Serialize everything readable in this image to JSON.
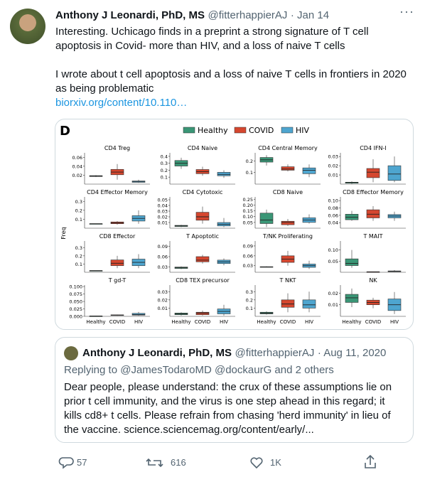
{
  "tweet": {
    "author": "Anthony J Leonardi, PhD, MS",
    "handle": "@fitterhappierAJ",
    "date": "· Jan 14",
    "lines": [
      "Interesting. Uchicago finds in a preprint a strong signature of T cell",
      "apoptosis in Covid- more than HIV, and a loss of naive T cells",
      "I wrote about t cell apoptosis and a loss of naive T cells in frontiers in 2020",
      "as being problematic"
    ],
    "link": "biorxiv.org/content/10.110…",
    "quote": {
      "author": "Anthony J Leonardi, PhD, MS",
      "handle": "@fitterhappierAJ",
      "date": "· Aug 11, 2020",
      "replying": "Replying to @JamesTodaroMD @dockaurG and 2 others",
      "lines": [
        "Dear people, please understand: the crux of these assumptions lie on",
        "prior t cell immunity, and the virus is one step ahead in this regard; it",
        "kills cd8+ t cells. Please refrain from chasing 'herd immunity' in lieu of",
        "the vaccine. science.sciencemag.org/content/early/..."
      ]
    },
    "replies": "57",
    "retweets": "616",
    "likes": "1K"
  },
  "chart_data": {
    "type": "box",
    "title": "D",
    "y_label": "Freq",
    "categories": [
      "Healthy",
      "COVID",
      "HIV"
    ],
    "series": [
      {
        "name": "Healthy",
        "color": "#3a9676"
      },
      {
        "name": "COVID",
        "color": "#d5472f"
      },
      {
        "name": "HIV",
        "color": "#4ea5cf"
      }
    ],
    "panels": [
      {
        "title": "CD4 Treg",
        "ylim": [
          0,
          0.07
        ],
        "yticks": [
          0.02,
          0.04,
          0.06
        ],
        "boxes": [
          [
            0.016,
            0.017,
            0.018,
            0.019,
            0.02
          ],
          [
            0.01,
            0.021,
            0.027,
            0.033,
            0.045
          ],
          [
            0.003,
            0.004,
            0.006,
            0.007,
            0.01
          ]
        ]
      },
      {
        "title": "CD4 Naive",
        "ylim": [
          0,
          0.45
        ],
        "yticks": [
          0.1,
          0.2,
          0.3,
          0.4
        ],
        "boxes": [
          [
            0.22,
            0.26,
            0.3,
            0.34,
            0.38
          ],
          [
            0.12,
            0.15,
            0.18,
            0.21,
            0.25
          ],
          [
            0.09,
            0.12,
            0.14,
            0.17,
            0.2
          ]
        ]
      },
      {
        "title": "CD4 Central Memory",
        "ylim": [
          0,
          0.27
        ],
        "yticks": [
          0.1,
          0.2
        ],
        "boxes": [
          [
            0.16,
            0.19,
            0.21,
            0.23,
            0.25
          ],
          [
            0.11,
            0.12,
            0.13,
            0.15,
            0.17
          ],
          [
            0.06,
            0.09,
            0.12,
            0.14,
            0.17
          ]
        ]
      },
      {
        "title": "CD4 IFN-I",
        "ylim": [
          0,
          0.034
        ],
        "yticks": [
          0.01,
          0.02,
          0.03
        ],
        "boxes": [
          [
            0,
            0.001,
            0.002,
            0.002,
            0.003
          ],
          [
            0.002,
            0.007,
            0.013,
            0.017,
            0.027
          ],
          [
            0.002,
            0.004,
            0.011,
            0.02,
            0.03
          ]
        ]
      },
      {
        "title": "CD4 Effector Memory",
        "ylim": [
          0,
          0.35
        ],
        "yticks": [
          0.1,
          0.2,
          0.3
        ],
        "boxes": [
          [
            0.05,
            0.05,
            0.05,
            0.05,
            0.05
          ],
          [
            0.04,
            0.05,
            0.06,
            0.07,
            0.08
          ],
          [
            0.05,
            0.08,
            0.11,
            0.14,
            0.2
          ]
        ]
      },
      {
        "title": "CD4 Cytotoxic",
        "ylim": [
          0,
          0.055
        ],
        "yticks": [
          0.01,
          0.02,
          0.03,
          0.04,
          0.05
        ],
        "boxes": [
          [
            0.002,
            0.003,
            0.004,
            0.005,
            0.006
          ],
          [
            0.008,
            0.014,
            0.02,
            0.028,
            0.038
          ],
          [
            0.002,
            0.004,
            0.007,
            0.01,
            0.018
          ]
        ]
      },
      {
        "title": "CD8 Naive",
        "ylim": [
          0,
          0.27
        ],
        "yticks": [
          0.05,
          {
            "value": 0.1,
            "label": "0.10"
          },
          0.15,
          {
            "value": 0.2,
            "label": "0.20"
          },
          0.25
        ],
        "boxes": [
          [
            0.01,
            0.04,
            0.07,
            0.13,
            0.16
          ],
          [
            0.02,
            0.03,
            0.05,
            0.06,
            0.08
          ],
          [
            0.04,
            0.05,
            0.07,
            0.09,
            0.12
          ]
        ]
      },
      {
        "title": "CD8 Effector Memory",
        "ylim": [
          0.025,
          0.11
        ],
        "yticks": [
          0.04,
          0.06,
          0.08,
          {
            "value": 0.1,
            "label": "0.10"
          }
        ],
        "boxes": [
          [
            0.045,
            0.048,
            0.055,
            0.063,
            0.072
          ],
          [
            0.045,
            0.053,
            0.063,
            0.075,
            0.085
          ],
          [
            0.045,
            0.053,
            0.058,
            0.062,
            0.07
          ]
        ]
      },
      {
        "title": "CD8 Effector",
        "ylim": [
          0,
          0.38
        ],
        "yticks": [
          0.1,
          0.2,
          0.3
        ],
        "boxes": [
          [
            0.02,
            0.02,
            0.02,
            0.02,
            0.02
          ],
          [
            0.05,
            0.08,
            0.11,
            0.15,
            0.2
          ],
          [
            0.05,
            0.08,
            0.12,
            0.16,
            0.22
          ]
        ]
      },
      {
        "title": "T Apoptotic",
        "ylim": [
          0.015,
          0.105
        ],
        "yticks": [
          0.03,
          0.06,
          0.09
        ],
        "boxes": [
          [
            0.024,
            0.026,
            0.028,
            0.03,
            0.032
          ],
          [
            0.04,
            0.045,
            0.05,
            0.06,
            0.065
          ],
          [
            0.035,
            0.04,
            0.045,
            0.05,
            0.055
          ]
        ]
      },
      {
        "title": "T/NK Proliferating",
        "ylim": [
          0.01,
          0.105
        ],
        "yticks": [
          0.03,
          0.06,
          0.09
        ],
        "boxes": [
          [
            0.025,
            0.025,
            0.026,
            0.027,
            0.028
          ],
          [
            0.03,
            0.04,
            0.05,
            0.06,
            0.075
          ],
          [
            0.02,
            0.025,
            0.03,
            0.035,
            0.045
          ]
        ]
      },
      {
        "title": "T MAIT",
        "ylim": [
          0,
          0.14
        ],
        "yticks": [
          0.05,
          {
            "value": 0.1,
            "label": "0.10"
          }
        ],
        "boxes": [
          [
            0.02,
            0.03,
            0.04,
            0.06,
            0.1
          ],
          [
            0.001,
            0.001,
            0.002,
            0.002,
            0.003
          ],
          [
            0.002,
            0.003,
            0.004,
            0.006,
            0.01
          ]
        ]
      },
      {
        "title": "T gd-T",
        "ylim": [
          0,
          0.105
        ],
        "yticks": [
          {
            "value": 0,
            "label": "0.000"
          },
          0.025,
          {
            "value": 0.05,
            "label": "0.050"
          },
          0.075,
          {
            "value": 0.1,
            "label": "0.100"
          }
        ],
        "boxes": [
          [
            0,
            0,
            0.001,
            0.001,
            0.002
          ],
          [
            0.002,
            0.003,
            0.004,
            0.005,
            0.006
          ],
          [
            0.002,
            0.004,
            0.006,
            0.01,
            0.015
          ]
        ]
      },
      {
        "title": "CD8 TEX precursor",
        "ylim": [
          0,
          0.038
        ],
        "yticks": [
          0.01,
          0.02,
          0.03
        ],
        "boxes": [
          [
            0.001,
            0.002,
            0.003,
            0.004,
            0.005
          ],
          [
            0.001,
            0.002,
            0.004,
            0.005,
            0.007
          ],
          [
            0.001,
            0.003,
            0.006,
            0.009,
            0.014
          ]
        ]
      },
      {
        "title": "T NKT",
        "ylim": [
          0,
          0.38
        ],
        "yticks": [
          0.1,
          0.2,
          0.3
        ],
        "boxes": [
          [
            0.02,
            0.03,
            0.04,
            0.05,
            0.06
          ],
          [
            0.05,
            0.11,
            0.15,
            0.2,
            0.28
          ],
          [
            0.05,
            0.1,
            0.14,
            0.2,
            0.3
          ]
        ]
      },
      {
        "title": "NK",
        "ylim": [
          0,
          0.027
        ],
        "yticks": [
          0.01,
          0.02
        ],
        "boxes": [
          [
            0.008,
            0.012,
            0.016,
            0.019,
            0.024
          ],
          [
            0.007,
            0.01,
            0.012,
            0.014,
            0.016
          ],
          [
            0.002,
            0.005,
            0.01,
            0.015,
            0.021
          ]
        ]
      }
    ]
  }
}
